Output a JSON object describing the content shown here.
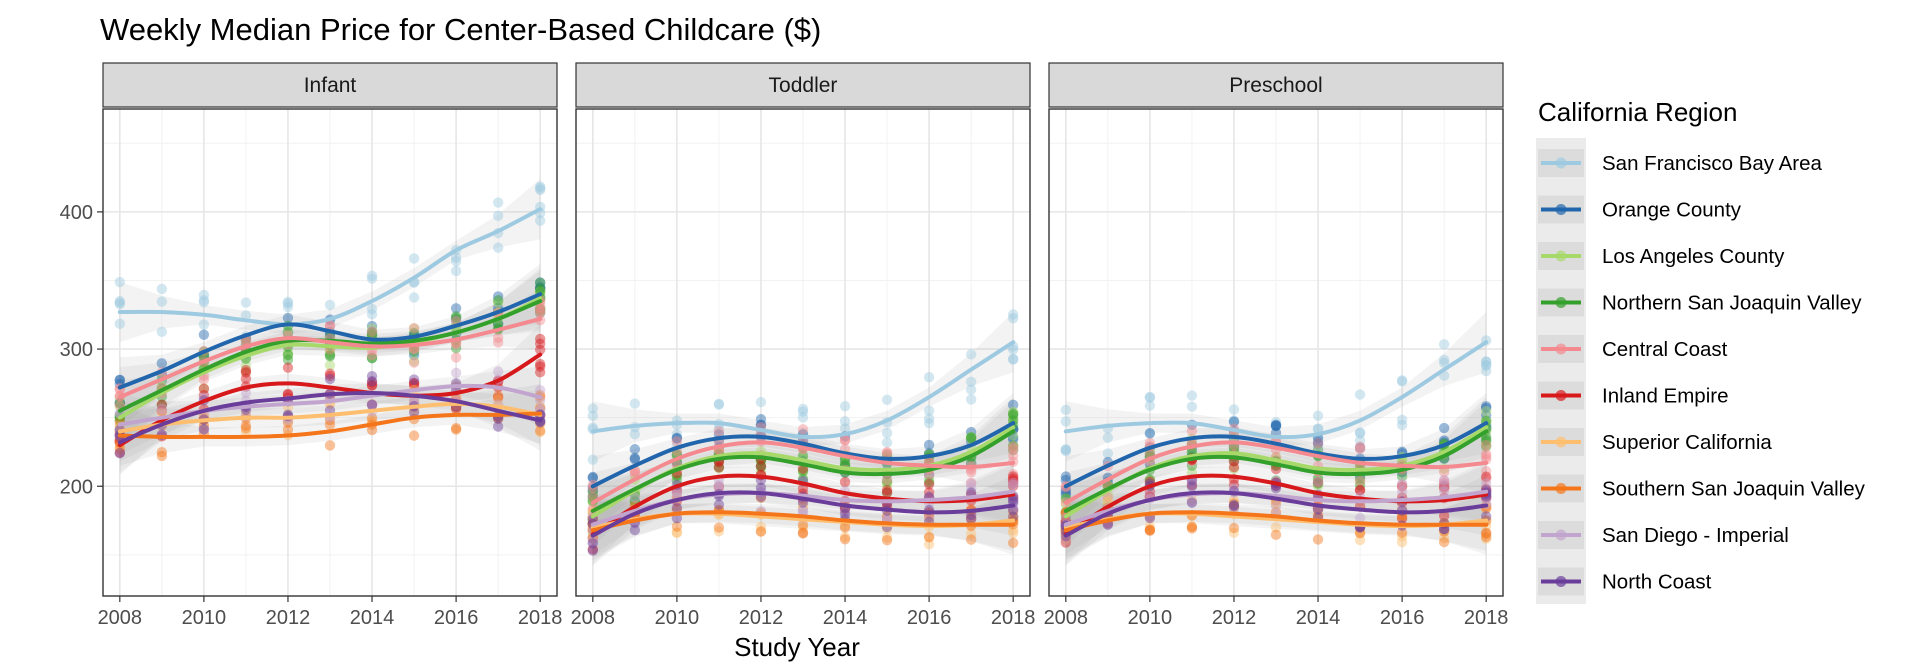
{
  "chart_data": {
    "type": "scatter",
    "title": "Weekly Median Price for Center-Based Childcare ($)",
    "xlabel": "Study Year",
    "ylabel": "",
    "xlim": [
      2007.6,
      2018.4
    ],
    "ylim": [
      120,
      475
    ],
    "x_ticks": [
      2008,
      2010,
      2012,
      2014,
      2016,
      2018
    ],
    "x_tick_labels": [
      "2008",
      "2010",
      "2012",
      "2014",
      "2016",
      "2018"
    ],
    "y_ticks": [
      200,
      300,
      400
    ],
    "y_tick_labels": [
      "200",
      "300",
      "400"
    ],
    "legend_title": "California Region",
    "legend_position": "right",
    "grid": true,
    "smooth": "loess with confidence band",
    "x": [
      2008,
      2009,
      2010,
      2011,
      2012,
      2013,
      2014,
      2015,
      2016,
      2017,
      2018
    ],
    "region_names": [
      "San Francisco Bay Area",
      "Orange County",
      "Los Angeles County",
      "Northern San Joaquin Valley",
      "Central Coast",
      "Inland Empire",
      "Superior California",
      "Southern San Joaquin Valley",
      "San Diego - Imperial",
      "North Coast"
    ],
    "region_colors": [
      "#9ecae1",
      "#2166ac",
      "#a6d96a",
      "#33a02c",
      "#f4898f",
      "#d7191c",
      "#fdbf6f",
      "#f5761a",
      "#c2a5cf",
      "#6a3d9a"
    ],
    "panels": [
      {
        "name": "Infant",
        "series": [
          {
            "region": 0,
            "values": [
              327,
              327,
              325,
              321,
              318,
              322,
              335,
              352,
              372,
              386,
              402
            ]
          },
          {
            "region": 1,
            "values": [
              272,
              284,
              298,
              310,
              318,
              313,
              307,
              309,
              317,
              327,
              340
            ]
          },
          {
            "region": 2,
            "values": [
              250,
              268,
              283,
              295,
              303,
              302,
              301,
              305,
              312,
              322,
              337
            ]
          },
          {
            "region": 3,
            "values": [
              255,
              270,
              285,
              298,
              306,
              306,
              304,
              306,
              312,
              322,
              335
            ]
          },
          {
            "region": 4,
            "values": [
              265,
              278,
              291,
              302,
              308,
              305,
              302,
              303,
              307,
              314,
              322
            ]
          },
          {
            "region": 5,
            "values": [
              230,
              248,
              262,
              272,
              275,
              272,
              268,
              266,
              268,
              277,
              296
            ]
          },
          {
            "region": 6,
            "values": [
              240,
              245,
              248,
              250,
              250,
              252,
              255,
              258,
              260,
              258,
              252
            ]
          },
          {
            "region": 7,
            "values": [
              237,
              236,
              236,
              236,
              237,
              240,
              245,
              250,
              252,
              252,
              253
            ]
          },
          {
            "region": 8,
            "values": [
              245,
              250,
              255,
              258,
              260,
              262,
              266,
              270,
              273,
              272,
              265
            ]
          },
          {
            "region": 9,
            "values": [
              232,
              245,
              255,
              261,
              264,
              267,
              268,
              266,
              262,
              255,
              248
            ]
          }
        ]
      },
      {
        "name": "Toddler",
        "series": [
          {
            "region": 0,
            "values": [
              240,
              244,
              246,
              246,
              241,
              236,
              238,
              248,
              265,
              285,
              305
            ]
          },
          {
            "region": 1,
            "values": [
              200,
              215,
              228,
              235,
              236,
              231,
              224,
              220,
              222,
              230,
              246
            ]
          },
          {
            "region": 2,
            "values": [
              178,
              197,
              213,
              222,
              224,
              219,
              213,
              212,
              215,
              225,
              243
            ]
          },
          {
            "region": 3,
            "values": [
              182,
              198,
              212,
              220,
              221,
              216,
              210,
              209,
              212,
              222,
              240
            ]
          },
          {
            "region": 4,
            "values": [
              188,
              205,
              220,
              229,
              232,
              228,
              222,
              217,
              215,
              214,
              217
            ]
          },
          {
            "region": 5,
            "values": [
              165,
              185,
              200,
              207,
              207,
              202,
              195,
              191,
              189,
              190,
              194
            ]
          },
          {
            "region": 6,
            "values": [
              170,
              176,
              180,
              180,
              178,
              176,
              174,
              172,
              171,
              172,
              175
            ]
          },
          {
            "region": 7,
            "values": [
              168,
              175,
              180,
              181,
              180,
              178,
              175,
              173,
              172,
              172,
              172
            ]
          },
          {
            "region": 8,
            "values": [
              172,
              182,
              190,
              194,
              195,
              193,
              190,
              189,
              190,
              192,
              196
            ]
          },
          {
            "region": 9,
            "values": [
              164,
              180,
              190,
              195,
              195,
              191,
              186,
              183,
              181,
              182,
              186
            ]
          }
        ]
      },
      {
        "name": "Preschool",
        "series": [
          {
            "region": 0,
            "values": [
              240,
              244,
              246,
              246,
              241,
              236,
              238,
              248,
              265,
              285,
              305
            ]
          },
          {
            "region": 1,
            "values": [
              200,
              215,
              228,
              235,
              236,
              231,
              224,
              220,
              222,
              230,
              246
            ]
          },
          {
            "region": 2,
            "values": [
              178,
              197,
              213,
              222,
              224,
              219,
              213,
              212,
              215,
              225,
              243
            ]
          },
          {
            "region": 3,
            "values": [
              182,
              198,
              212,
              220,
              221,
              216,
              210,
              209,
              212,
              222,
              240
            ]
          },
          {
            "region": 4,
            "values": [
              188,
              205,
              220,
              229,
              232,
              228,
              222,
              217,
              215,
              214,
              217
            ]
          },
          {
            "region": 5,
            "values": [
              165,
              185,
              200,
              207,
              207,
              202,
              195,
              191,
              189,
              190,
              194
            ]
          },
          {
            "region": 6,
            "values": [
              170,
              176,
              180,
              180,
              178,
              176,
              174,
              172,
              171,
              172,
              175
            ]
          },
          {
            "region": 7,
            "values": [
              168,
              175,
              180,
              181,
              180,
              178,
              175,
              173,
              172,
              172,
              172
            ]
          },
          {
            "region": 8,
            "values": [
              172,
              182,
              190,
              194,
              195,
              193,
              190,
              189,
              190,
              192,
              196
            ]
          },
          {
            "region": 9,
            "values": [
              164,
              180,
              190,
              195,
              195,
              191,
              186,
              183,
              181,
              182,
              186
            ]
          }
        ]
      }
    ]
  }
}
